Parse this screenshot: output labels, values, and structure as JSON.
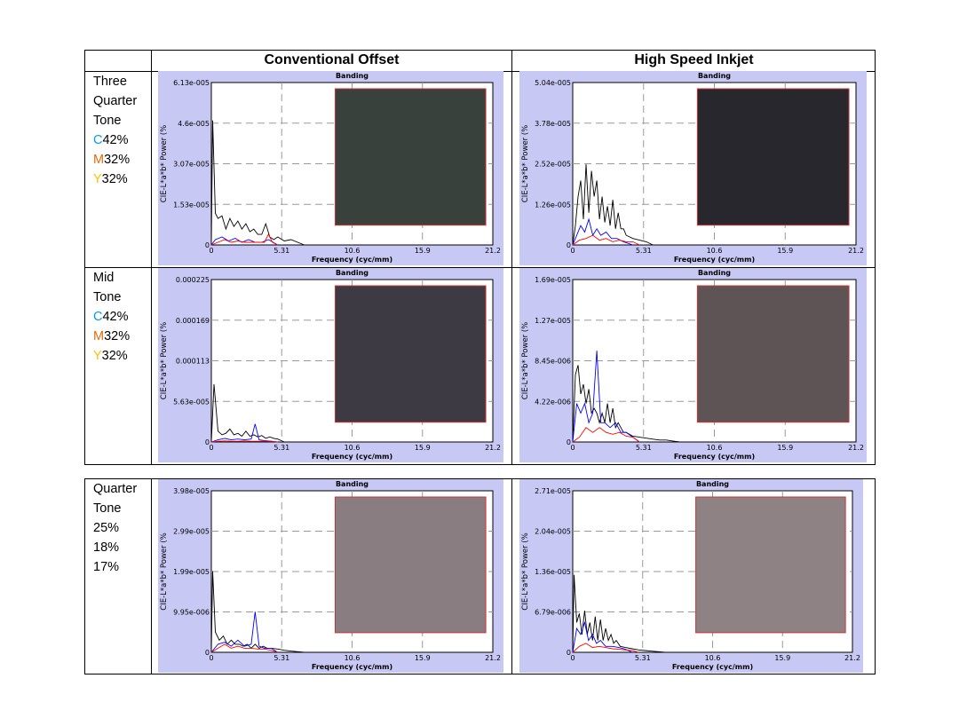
{
  "columns": [
    "Conventional Offset",
    "High Speed Inkjet"
  ],
  "rows": [
    {
      "label_lines": [
        "Three",
        "Quarter",
        "Tone"
      ],
      "inks": [
        {
          "letter": "C",
          "value": "42%"
        },
        {
          "letter": "M",
          "value": "32%"
        },
        {
          "letter": "Y",
          "value": "32%"
        }
      ]
    },
    {
      "label_lines": [
        "Mid",
        "Tone"
      ],
      "inks": [
        {
          "letter": "C",
          "value": "42%"
        },
        {
          "letter": "M",
          "value": "32%"
        },
        {
          "letter": "Y",
          "value": "32%"
        }
      ]
    },
    {
      "label_lines": [
        "Quarter",
        "Tone",
        "25%",
        "18%",
        "17%"
      ],
      "inks": []
    }
  ],
  "colors": {
    "C": "#00a0dc",
    "M": "#e46c0a",
    "Y": "#ffc000",
    "panel_bg": "#c8c8f4",
    "series_black": "#000000",
    "series_blue": "#0000ff",
    "series_red": "#ff0000",
    "swatch_border": "#cc3333"
  },
  "chart_data": [
    {
      "type": "line",
      "row": "Three Quarter Tone",
      "column": "Conventional Offset",
      "title": "Banding",
      "xlabel": "Frequency (cyc/mm)",
      "ylabel": "CIE-L*a*b* Power (%",
      "xlim": [
        0,
        21.2
      ],
      "xticks": [
        "0",
        "5.31",
        "10.6",
        "15.9",
        "21.2"
      ],
      "ylim": [
        0,
        6.13e-05
      ],
      "yticks": [
        "0",
        "1.53e-005",
        "3.07e-005",
        "4.6e-005",
        "6.13e-005"
      ],
      "grid": true,
      "swatch": "#38413c",
      "series": [
        {
          "color": "black",
          "x": [
            0,
            0.1,
            0.3,
            0.5,
            0.8,
            1.1,
            1.4,
            1.7,
            2,
            2.3,
            2.6,
            2.9,
            3.2,
            3.5,
            3.8,
            4.1,
            4.4,
            4.7,
            5,
            5.5,
            6,
            7
          ],
          "y": [
            0,
            4.7e-05,
            1.2e-05,
            1e-05,
            1.1e-05,
            6e-06,
            1e-05,
            7e-06,
            9e-06,
            6e-06,
            8e-06,
            5e-06,
            6e-06,
            4e-06,
            4e-06,
            8e-06,
            3e-06,
            2e-06,
            3e-06,
            1.5e-06,
            2e-06,
            0
          ]
        },
        {
          "color": "blue",
          "x": [
            0,
            0.3,
            0.8,
            1.3,
            1.8,
            2.3,
            2.8,
            3.3,
            3.8,
            4.3,
            5
          ],
          "y": [
            0,
            2e-06,
            3e-06,
            1.5e-06,
            2.5e-06,
            1e-06,
            2e-06,
            1e-06,
            1e-06,
            2e-06,
            0
          ]
        },
        {
          "color": "red",
          "x": [
            0,
            0.5,
            1,
            1.5,
            2,
            2.5,
            3,
            3.5,
            4,
            4.3,
            4.6,
            5
          ],
          "y": [
            0,
            1e-06,
            2e-06,
            1e-06,
            1.5e-06,
            1e-06,
            1e-06,
            1e-06,
            1e-06,
            4e-06,
            1e-06,
            0
          ]
        }
      ]
    },
    {
      "type": "line",
      "row": "Three Quarter Tone",
      "column": "High Speed Inkjet",
      "title": "Banding",
      "xlabel": "Frequency (cyc/mm)",
      "ylabel": "CIE-L*a*b* Power (%",
      "xlim": [
        0,
        21.2
      ],
      "xticks": [
        "0",
        "5.31",
        "10.6",
        "15.9",
        "21.2"
      ],
      "ylim": [
        0,
        5.04e-05
      ],
      "yticks": [
        "0",
        "1.26e-005",
        "2.52e-005",
        "3.78e-005",
        "5.04e-005"
      ],
      "grid": true,
      "swatch": "#28272e",
      "series": [
        {
          "color": "black",
          "x": [
            0,
            0.2,
            0.4,
            0.6,
            0.8,
            1,
            1.2,
            1.4,
            1.6,
            1.8,
            2,
            2.2,
            2.4,
            2.6,
            2.8,
            3,
            3.2,
            3.4,
            3.6,
            3.8,
            4,
            4.5,
            5,
            5.5,
            6
          ],
          "y": [
            0,
            6e-06,
            1.5e-05,
            2e-05,
            8e-06,
            2.5e-05,
            1e-05,
            2.3e-05,
            1.5e-05,
            2e-05,
            8e-06,
            1.5e-05,
            7e-06,
            1.2e-05,
            6e-06,
            1.4e-05,
            5e-06,
            1e-05,
            5e-06,
            5e-06,
            3e-06,
            2e-06,
            1.5e-06,
            1e-06,
            0
          ]
        },
        {
          "color": "blue",
          "x": [
            0,
            0.3,
            0.6,
            0.9,
            1.2,
            1.5,
            1.8,
            2.1,
            2.5,
            2.9,
            3.3,
            3.8,
            4.5
          ],
          "y": [
            0,
            3e-06,
            6e-06,
            4e-06,
            8e-06,
            3e-06,
            5e-06,
            3e-06,
            4e-06,
            2e-06,
            2e-06,
            1e-06,
            0
          ]
        },
        {
          "color": "red",
          "x": [
            0,
            0.5,
            1,
            1.5,
            2,
            2.5,
            3,
            3.5,
            4,
            4.5,
            5
          ],
          "y": [
            0,
            1.5e-06,
            2e-06,
            3e-06,
            1.5e-06,
            2e-06,
            1e-06,
            1.5e-06,
            1e-06,
            1e-06,
            0
          ]
        }
      ]
    },
    {
      "type": "line",
      "row": "Mid Tone",
      "column": "Conventional Offset",
      "title": "Banding",
      "xlabel": "Frequency (cyc/mm)",
      "ylabel": "CIE-L*a*b* Power (%",
      "xlim": [
        0,
        21.2
      ],
      "xticks": [
        "0",
        "5.31",
        "10.6",
        "15.9",
        "21.2"
      ],
      "ylim": [
        0,
        0.000225
      ],
      "yticks": [
        "0",
        "5.63e-005",
        "0.000113",
        "0.000169",
        "0.000225"
      ],
      "grid": true,
      "swatch": "#3e3a44",
      "series": [
        {
          "color": "black",
          "x": [
            0,
            0.2,
            0.5,
            0.8,
            1.1,
            1.4,
            1.7,
            2,
            2.3,
            2.6,
            2.9,
            3.2,
            3.5,
            3.8,
            4.1,
            4.4,
            4.7,
            5,
            5.5
          ],
          "y": [
            0,
            8e-05,
            1.5e-05,
            1e-05,
            1.2e-05,
            1.8e-05,
            1e-05,
            1.2e-05,
            8e-06,
            1.5e-05,
            8e-06,
            1e-05,
            7e-06,
            9e-06,
            5e-06,
            7e-06,
            5e-06,
            4e-06,
            0
          ]
        },
        {
          "color": "blue",
          "x": [
            0,
            0.5,
            1,
            1.5,
            2,
            2.5,
            3,
            3.3,
            3.6,
            4,
            4.5,
            5
          ],
          "y": [
            0,
            3e-06,
            5e-06,
            3e-06,
            4e-06,
            3e-06,
            4e-06,
            2.5e-05,
            3e-06,
            2e-06,
            1e-06,
            0
          ]
        },
        {
          "color": "red",
          "x": [
            0,
            0.5,
            1,
            1.5,
            2,
            2.5,
            3,
            3.5,
            4,
            4.5,
            5
          ],
          "y": [
            0,
            1e-06,
            1.5e-06,
            1e-06,
            1e-06,
            1.5e-06,
            1e-06,
            1e-06,
            1e-06,
            1e-06,
            0
          ]
        }
      ]
    },
    {
      "type": "line",
      "row": "Mid Tone",
      "column": "High Speed Inkjet",
      "title": "Banding",
      "xlabel": "Frequency (cyc/mm)",
      "ylabel": "CIE-L*a*b* Power (%",
      "xlim": [
        0,
        21.2
      ],
      "xticks": [
        "0",
        "5.31",
        "10.6",
        "15.9",
        "21.2"
      ],
      "ylim": [
        0,
        1.69e-05
      ],
      "yticks": [
        "0",
        "4.22e-006",
        "8.45e-006",
        "1.27e-005",
        "1.69e-005"
      ],
      "grid": true,
      "swatch": "#5e5456",
      "series": [
        {
          "color": "black",
          "x": [
            0,
            0.2,
            0.4,
            0.6,
            0.8,
            1,
            1.2,
            1.4,
            1.6,
            1.8,
            2,
            2.2,
            2.4,
            2.6,
            2.8,
            3,
            3.2,
            3.4,
            3.6,
            3.8,
            4,
            4.5,
            5,
            5.5,
            6,
            6.5,
            7,
            8
          ],
          "y": [
            0,
            7e-06,
            8e-06,
            5e-06,
            6e-06,
            4e-06,
            5.5e-06,
            3e-06,
            3.5e-06,
            3e-06,
            2e-06,
            3e-06,
            2e-06,
            4e-06,
            2e-06,
            3.5e-06,
            1.5e-06,
            2e-06,
            1.5e-06,
            1e-06,
            1e-06,
            6e-07,
            5e-07,
            4e-07,
            3e-07,
            2e-07,
            2e-07,
            0
          ]
        },
        {
          "color": "blue",
          "x": [
            0,
            0.3,
            0.6,
            0.9,
            1.2,
            1.5,
            1.8,
            2.1,
            2.4,
            2.8,
            3.2,
            3.6,
            4,
            4.5,
            5
          ],
          "y": [
            0,
            4e-06,
            3e-06,
            4e-06,
            2e-06,
            3e-06,
            9.5e-06,
            2e-06,
            2e-06,
            1.5e-06,
            2e-06,
            1e-06,
            1e-06,
            5e-07,
            0
          ]
        },
        {
          "color": "red",
          "x": [
            0,
            0.5,
            1,
            1.5,
            2,
            2.5,
            3,
            3.5,
            4,
            4.5,
            5
          ],
          "y": [
            0,
            5e-07,
            1.5e-06,
            1e-06,
            1.5e-06,
            1e-06,
            8e-07,
            1e-06,
            6e-07,
            5e-07,
            0
          ]
        }
      ]
    },
    {
      "type": "line",
      "row": "Quarter Tone",
      "column": "Conventional Offset",
      "title": "Banding",
      "xlabel": "Frequency (cyc/mm)",
      "ylabel": "CIE-L*a*b* Power (%",
      "xlim": [
        0,
        21.2
      ],
      "xticks": [
        "0",
        "5.31",
        "10.6",
        "15.9",
        "21.2"
      ],
      "ylim": [
        0,
        3.98e-05
      ],
      "yticks": [
        "0",
        "9.95e-006",
        "1.99e-005",
        "2.99e-005",
        "3.98e-005"
      ],
      "grid": true,
      "swatch": "#8a7d82",
      "series": [
        {
          "color": "black",
          "x": [
            0,
            0.1,
            0.3,
            0.6,
            0.9,
            1.2,
            1.5,
            1.8,
            2.1,
            2.4,
            2.7,
            3,
            3.3,
            3.6,
            3.9,
            4.2,
            4.5,
            5,
            5.5,
            6,
            7
          ],
          "y": [
            0,
            2e-05,
            5e-06,
            3e-06,
            4e-06,
            2e-06,
            3e-06,
            2e-06,
            2e-06,
            1.5e-06,
            2e-06,
            1e-06,
            2e-06,
            1e-06,
            1.5e-06,
            1e-06,
            1e-06,
            8e-07,
            5e-07,
            3e-07,
            0
          ]
        },
        {
          "color": "blue",
          "x": [
            0,
            0.5,
            1,
            1.5,
            2,
            2.5,
            3,
            3.3,
            3.6,
            4,
            4.5,
            5
          ],
          "y": [
            0,
            2e-06,
            2.5e-06,
            1.5e-06,
            3e-06,
            1.5e-06,
            2e-06,
            1e-05,
            1.5e-06,
            1e-06,
            1e-06,
            0
          ]
        },
        {
          "color": "red",
          "x": [
            0,
            0.5,
            1,
            1.5,
            2,
            2.5,
            3,
            3.5,
            4,
            4.5,
            5
          ],
          "y": [
            0,
            1e-06,
            2e-06,
            1e-06,
            1.5e-06,
            1e-06,
            1e-06,
            8e-07,
            8e-07,
            5e-07,
            0
          ]
        }
      ]
    },
    {
      "type": "line",
      "row": "Quarter Tone",
      "column": "High Speed Inkjet",
      "title": "Banding",
      "xlabel": "Frequency (cyc/mm)",
      "ylabel": "CIE-L*a*b* Power (%",
      "xlim": [
        0,
        21.2
      ],
      "xticks": [
        "0",
        "5.31",
        "10.6",
        "15.9",
        "21.2"
      ],
      "ylim": [
        0,
        2.71e-05
      ],
      "yticks": [
        "0",
        "6.79e-006",
        "1.36e-005",
        "2.04e-005",
        "2.71e-005"
      ],
      "grid": true,
      "swatch": "#8e8285",
      "series": [
        {
          "color": "black",
          "x": [
            0,
            0.1,
            0.3,
            0.5,
            0.7,
            0.9,
            1.1,
            1.3,
            1.5,
            1.7,
            1.9,
            2.1,
            2.3,
            2.5,
            2.7,
            2.9,
            3.1,
            3.3,
            3.6,
            4,
            4.5,
            5,
            5.5,
            6,
            7
          ],
          "y": [
            0,
            1.3e-05,
            5e-06,
            6.5e-06,
            3e-06,
            7e-06,
            3e-06,
            5e-06,
            2e-06,
            6e-06,
            2e-06,
            5.5e-06,
            2e-06,
            4e-06,
            2e-06,
            3e-06,
            1.5e-06,
            2e-06,
            1e-06,
            8e-07,
            6e-07,
            4e-07,
            3e-07,
            2e-07,
            0
          ]
        },
        {
          "color": "blue",
          "x": [
            0,
            0.3,
            0.6,
            0.9,
            1.2,
            1.5,
            1.8,
            2.1,
            2.5,
            3,
            3.5,
            4,
            4.5
          ],
          "y": [
            0,
            4e-06,
            3e-06,
            5e-06,
            2e-06,
            3e-06,
            1.5e-06,
            2e-06,
            1e-06,
            1e-06,
            8e-07,
            5e-07,
            0
          ]
        },
        {
          "color": "red",
          "x": [
            0,
            0.5,
            1,
            1.5,
            2,
            2.5,
            3,
            3.5,
            4,
            4.5,
            5
          ],
          "y": [
            0,
            1e-06,
            1.5e-06,
            8e-07,
            1e-06,
            8e-07,
            6e-07,
            5e-07,
            4e-07,
            3e-07,
            0
          ]
        }
      ]
    }
  ]
}
